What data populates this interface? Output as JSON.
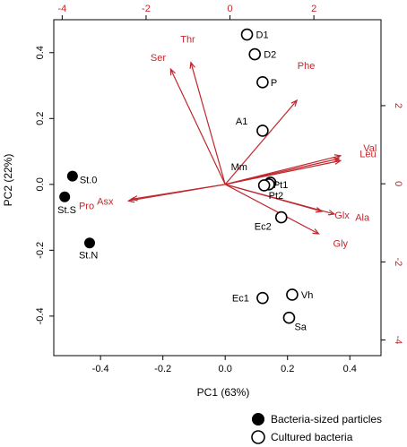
{
  "chart_data": {
    "type": "scatter",
    "xlabel": "PC1 (63%)",
    "ylabel": "PC2 (22%)",
    "xlim": [
      -0.55,
      0.5
    ],
    "ylim": [
      -0.52,
      0.5
    ],
    "x_ticks": [
      -0.4,
      -0.2,
      0.0,
      0.2,
      0.4
    ],
    "x_tick_labels": [
      "-0.4",
      "-0.2",
      "0.0",
      "0.2",
      "0.4"
    ],
    "y_ticks": [
      -0.4,
      -0.2,
      0.0,
      0.2,
      0.4
    ],
    "y_tick_labels": [
      "-0.4",
      "-0.2",
      "0.0",
      "0.2",
      "0.4"
    ],
    "top_ticks": [
      -4,
      -2,
      0,
      2
    ],
    "top_tick_labels": [
      "-4",
      "-2",
      "0",
      "2"
    ],
    "top_xlim": [
      -4.2,
      3.6
    ],
    "right_ticks": [
      -4,
      -2,
      0,
      2
    ],
    "right_tick_labels": [
      "-4",
      "-2",
      "0",
      "2"
    ],
    "right_ylim": [
      -4.4,
      4.2
    ],
    "legend_placement": "bottom-right",
    "grid": false,
    "colors": {
      "vectors": "#c0272d",
      "filled": "#000000",
      "open": "#000000"
    },
    "series": [
      {
        "name": "Bacteria-sized particles",
        "marker": "filled",
        "points": [
          {
            "label": "St.0",
            "x": -0.49,
            "y": 0.025
          },
          {
            "label": "St.S",
            "x": -0.515,
            "y": -0.038
          },
          {
            "label": "St.N",
            "x": -0.435,
            "y": -0.178
          }
        ]
      },
      {
        "name": "Cultured bacteria",
        "marker": "open",
        "points": [
          {
            "label": "D1",
            "x": 0.07,
            "y": 0.455
          },
          {
            "label": "D2",
            "x": 0.095,
            "y": 0.395
          },
          {
            "label": "P",
            "x": 0.12,
            "y": 0.31
          },
          {
            "label": "A1",
            "x": 0.12,
            "y": 0.163
          },
          {
            "label": "Mm",
            "x": 0.145,
            "y": 0.005
          },
          {
            "label": "Pt1",
            "x": 0.14,
            "y": 0.0
          },
          {
            "label": "Pt2",
            "x": 0.125,
            "y": -0.003
          },
          {
            "label": "Ec2",
            "x": 0.18,
            "y": -0.1
          },
          {
            "label": "Ec1",
            "x": 0.12,
            "y": -0.345
          },
          {
            "label": "Vh",
            "x": 0.215,
            "y": -0.335
          },
          {
            "label": "Sa",
            "x": 0.205,
            "y": -0.405
          }
        ]
      }
    ],
    "vectors": [
      {
        "label": "Thr",
        "x": -0.11,
        "y": 0.37
      },
      {
        "label": "Ser",
        "x": -0.175,
        "y": 0.35
      },
      {
        "label": "Phe",
        "x": 0.23,
        "y": 0.255
      },
      {
        "label": "Val",
        "x": 0.37,
        "y": 0.087
      },
      {
        "label": "Leu",
        "x": 0.37,
        "y": 0.072
      },
      {
        "label": "Mm-vec",
        "x": 0.365,
        "y": 0.078
      },
      {
        "label": "Glx",
        "x": 0.31,
        "y": -0.082
      },
      {
        "label": "Ala",
        "x": 0.35,
        "y": -0.09
      },
      {
        "label": "Gly",
        "x": 0.3,
        "y": -0.15
      },
      {
        "label": "Asx",
        "x": -0.3,
        "y": -0.045
      },
      {
        "label": "Pro",
        "x": -0.31,
        "y": -0.05
      }
    ]
  },
  "vector_labels": {
    "Thr": "Thr",
    "Ser": "Ser",
    "Phe": "Phe",
    "Val": "Val",
    "Leu": "Leu",
    "Glx": "Glx",
    "Ala": "Ala",
    "Gly": "Gly",
    "Asx": "Asx",
    "Pro": "Pro"
  },
  "legend": {
    "filled_label": "Bacteria-sized particles",
    "open_label": "Cultured bacteria"
  }
}
